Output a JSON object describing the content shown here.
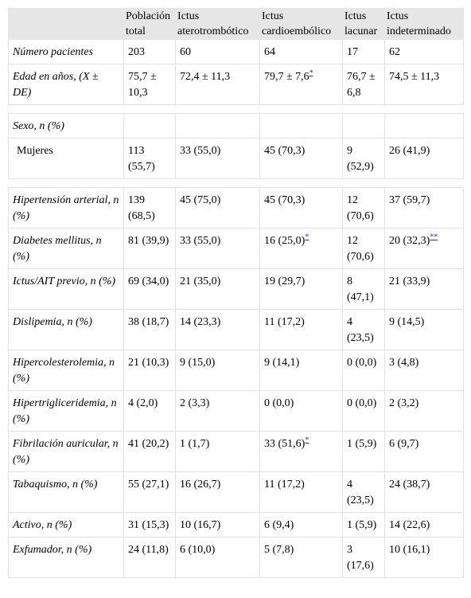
{
  "table": {
    "header": [
      "",
      "Población total",
      "Ictus aterotrombótico",
      "Ictus cardioembólico",
      "Ictus lacunar",
      "Ictus indeterminado"
    ],
    "rows": [
      {
        "cells": [
          "Número pacientes",
          "203",
          "60",
          "64",
          "17",
          "62"
        ]
      },
      {
        "cells": [
          "Edad en años, (X ± DE)",
          "75,7 ± 10,3",
          "72,4 ± 11,3",
          {
            "text": "79,7 ± 7,6",
            "note": "*"
          },
          "76,7 ± 6,8",
          "74,5 ± 11,3"
        ]
      },
      {
        "cells": [
          "Sexo, n (%)"
        ]
      },
      {
        "cells": [
          "Mujeres",
          "113 (55,7)",
          "33 (55,0)",
          "45 (70,3)",
          "9 (52,9)",
          "26 (41,9)"
        ]
      },
      {
        "cells": [
          "Hipertensión arterial, n (%)",
          "139 (68,5)",
          "45 (75,0)",
          "45 (70,3)",
          "12 (70,6)",
          "37 (59,7)"
        ]
      },
      {
        "cells": [
          "Diabetes mellitus, n (%)",
          "81 (39,9)",
          "33 (55,0)",
          {
            "text": "16 (25,0)",
            "note": "*"
          },
          "12 (70,6)",
          {
            "text": "20 (32,3)",
            "note": "**"
          }
        ]
      },
      {
        "cells": [
          "Ictus/AIT previo, n (%)",
          "69 (34,0)",
          "21 (35,0)",
          "19 (29,7)",
          "8 (47,1)",
          "21 (33,9)"
        ]
      },
      {
        "cells": [
          "Dislipemia, n (%)",
          "38 (18,7)",
          "14 (23,3)",
          "11 (17,2)",
          "4 (23,5)",
          "9 (14,5)"
        ]
      },
      {
        "cells": [
          "Hipercolesterolemia, n (%)",
          "21 (10,3)",
          "9 (15,0)",
          "9 (14,1)",
          "0 (0,0)",
          "3 (4,8)"
        ]
      },
      {
        "cells": [
          "Hipertrigliceridemia, n (%)",
          "4 (2,0)",
          "2 (3,3)",
          "0 (0,0)",
          "0 (0,0)",
          "2 (3,2)"
        ]
      },
      {
        "cells": [
          "Fibrilación auricular, n (%)",
          "41 (20,2)",
          "1 (1,7)",
          {
            "text": "33 (51,6)",
            "note": "*"
          },
          "1 (5,9)",
          "6 (9,7)"
        ]
      },
      {
        "cells": [
          "Tabaquismo, n (%)",
          "55 (27,1)",
          "16 (26,7)",
          "11 (17,2)",
          "4 (23,5)",
          "24 (38,7)"
        ]
      },
      {
        "cells": [
          "Activo, n (%)",
          "31 (15,3)",
          "10 (16,7)",
          "6 (9,4)",
          "1 (5,9)",
          "14 (22,6)"
        ]
      },
      {
        "cells": [
          "Exfumador, n (%)",
          "24 (11,8)",
          "6 (10,0)",
          "5 (7,8)",
          "3 (17,6)",
          "10 (16,1)"
        ]
      }
    ]
  }
}
